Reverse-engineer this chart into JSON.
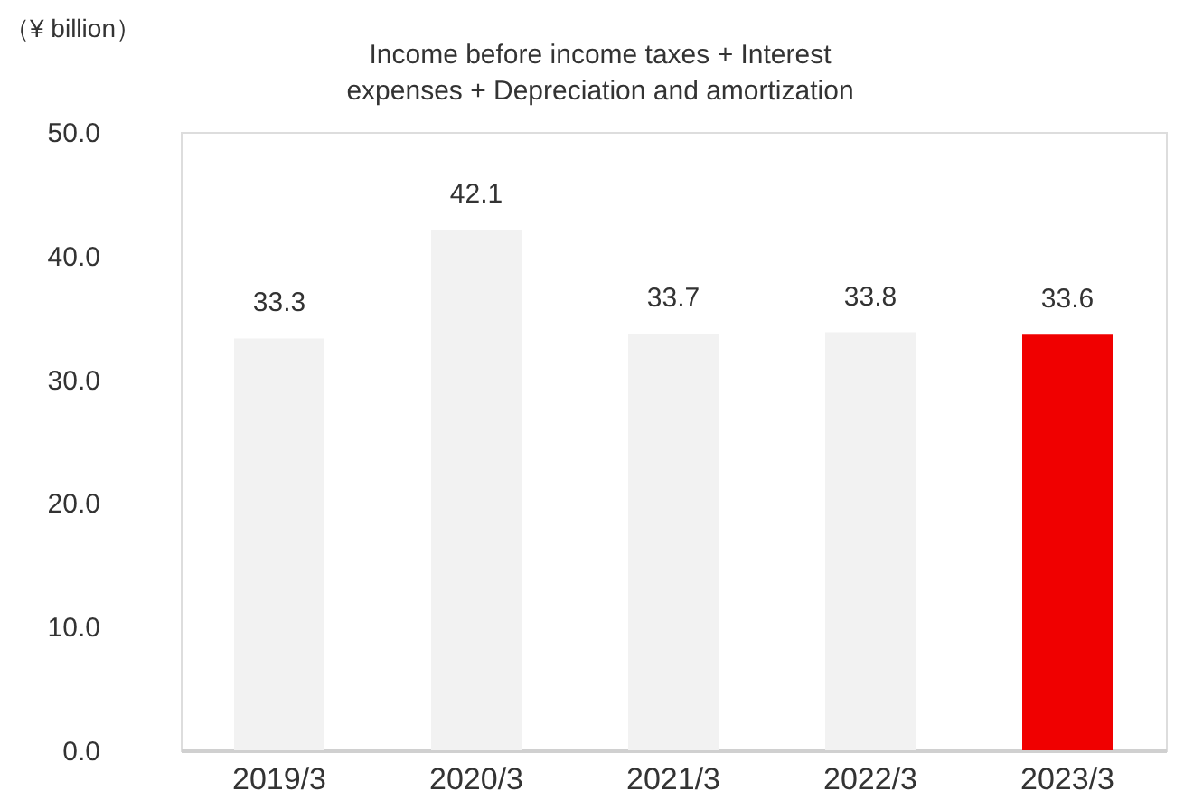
{
  "chart_data": {
    "type": "bar",
    "title": "Income before income taxes + Interest\nexpenses + Depreciation and amortization",
    "ylabel": "（¥ billion）",
    "categories": [
      "2019/3",
      "2020/3",
      "2021/3",
      "2022/3",
      "2023/3"
    ],
    "values": [
      33.3,
      42.1,
      33.7,
      33.8,
      33.6
    ],
    "colors": [
      "#f2f2f2",
      "#f2f2f2",
      "#f2f2f2",
      "#f2f2f2",
      "#f00000"
    ],
    "ylim": [
      0,
      50
    ],
    "yticks": [
      {
        "value": 0,
        "label": "0.0"
      },
      {
        "value": 10,
        "label": "10.0"
      },
      {
        "value": 20,
        "label": "20.0"
      },
      {
        "value": 30,
        "label": "30.0"
      },
      {
        "value": 40,
        "label": "40.0"
      },
      {
        "value": 50,
        "label": "50.0"
      }
    ],
    "grid": false,
    "data_labels": true
  }
}
